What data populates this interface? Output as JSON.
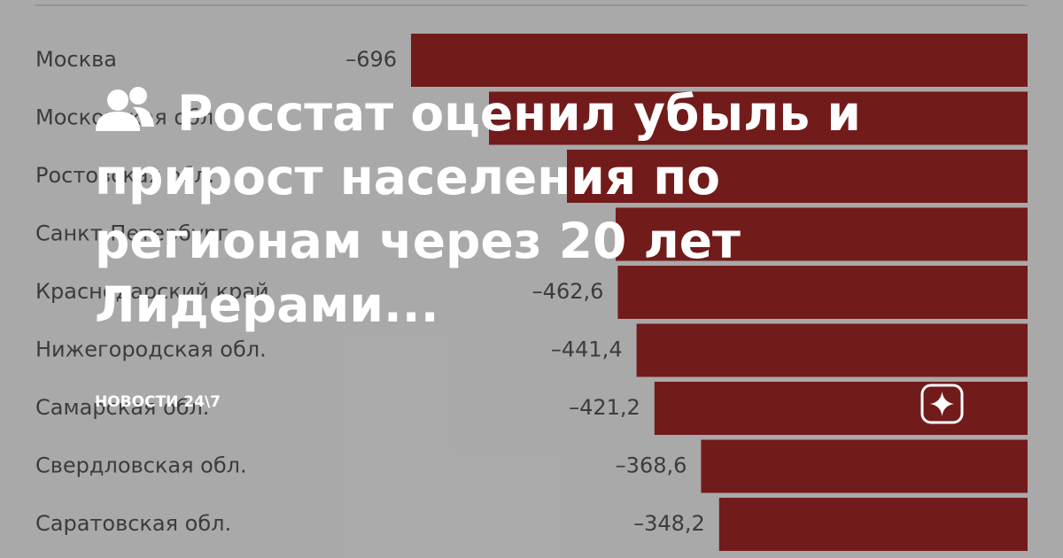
{
  "chart_data": {
    "type": "hbar",
    "categories": [
      "Москва",
      "Московская обл.",
      "Ростовская обл.",
      "Санкт-Петербург",
      "Краснодарский край",
      "Нижегородская обл.",
      "Самарская обл.",
      "Свердловская обл.",
      "Саратовская обл."
    ],
    "values": [
      -696,
      -608,
      -520,
      -465,
      -462.6,
      -441.4,
      -421.2,
      -368.6,
      -348.2
    ],
    "value_labels": [
      "–696",
      null,
      null,
      null,
      "–462,6",
      "–441,4",
      "–421,2",
      "–368,6",
      "–348,2"
    ],
    "color": "#8c2121",
    "xlim": [
      -700,
      0
    ]
  },
  "overlay": {
    "title": "Росстат оценил убыль и прирост населения по регионам через 20 лет Лидерами...",
    "source": "НОВОСТИ 24\\7"
  }
}
